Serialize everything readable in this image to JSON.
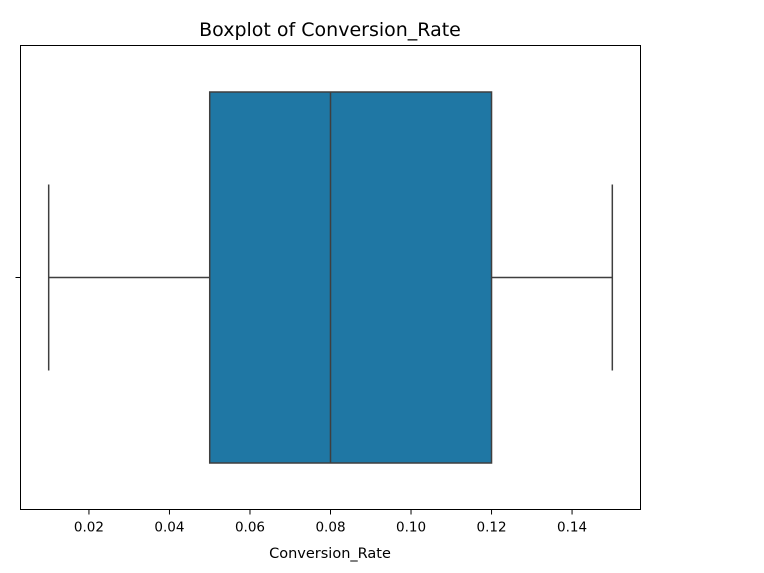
{
  "chart_data": {
    "type": "boxplot",
    "title": "Boxplot of Conversion_Rate",
    "xlabel": "Conversion_Rate",
    "ylabel": "",
    "orientation": "horizontal",
    "xlim": [
      0.003,
      0.157
    ],
    "xticks": [
      0.02,
      0.04,
      0.06,
      0.08,
      0.1,
      0.12,
      0.14
    ],
    "xtick_labels": [
      "0.02",
      "0.04",
      "0.06",
      "0.08",
      "0.10",
      "0.12",
      "0.14"
    ],
    "yticks": [
      ""
    ],
    "grid": false,
    "series": [
      {
        "whisker_low": 0.01,
        "q1": 0.05,
        "median": 0.08,
        "q3": 0.12,
        "whisker_high": 0.15
      }
    ],
    "colors": {
      "box_fill": "#1f77a4",
      "line": "#3f3f3f",
      "frame": "#000000"
    }
  }
}
